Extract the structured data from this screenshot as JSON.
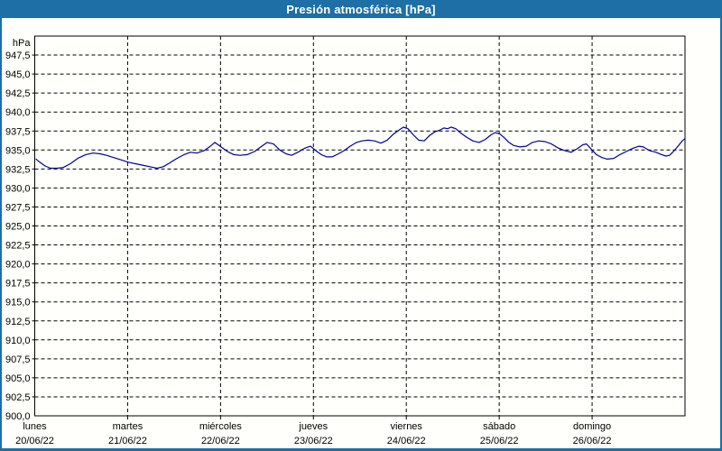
{
  "window": {
    "title": "Presión atmosférica [hPa]"
  },
  "colors": {
    "title_bar": "#1d6fa5",
    "frame_border": "#1d6fa5",
    "background": "#fffffb",
    "grid": "#000000",
    "axis": "#000000",
    "text": "#000000",
    "title_text": "#ffffff",
    "line": "#0000a0"
  },
  "chart_data": {
    "type": "line",
    "title": "Presión atmosférica [hPa]",
    "ylabel": "hPa",
    "xlabel": "",
    "ylim": [
      900,
      950
    ],
    "ytick_step": 2.5,
    "ytick_labels": [
      "947,5",
      "945,0",
      "942,5",
      "940,0",
      "937,5",
      "935,0",
      "932,5",
      "930,0",
      "927,5",
      "925,0",
      "922,5",
      "920,0",
      "917,5",
      "915,0",
      "912,5",
      "910,0",
      "907,5",
      "905,0",
      "902,5",
      "900,0"
    ],
    "ytick_top_value": 947.5,
    "grid": {
      "horizontal": "dashed",
      "vertical": "dashed-at-day-boundaries",
      "legend": "none"
    },
    "x_axis": {
      "unit": "days",
      "span_days": 7,
      "days": [
        {
          "weekday": "lunes",
          "date": "20/06/22"
        },
        {
          "weekday": "martes",
          "date": "21/06/22"
        },
        {
          "weekday": "miércoles",
          "date": "22/06/22"
        },
        {
          "weekday": "jueves",
          "date": "23/06/22"
        },
        {
          "weekday": "viernes",
          "date": "24/06/22"
        },
        {
          "weekday": "sábado",
          "date": "25/06/22"
        },
        {
          "weekday": "domingo",
          "date": "26/06/22"
        }
      ]
    },
    "series": [
      {
        "name": "Presión atmosférica",
        "color": "#0000a0",
        "x_unit": "days_from_20_06_22",
        "points": [
          [
            0.015,
            933.8
          ],
          [
            0.053,
            933.4
          ],
          [
            0.112,
            932.9
          ],
          [
            0.17,
            932.6
          ],
          [
            0.238,
            932.6
          ],
          [
            0.306,
            932.7
          ],
          [
            0.384,
            933.2
          ],
          [
            0.462,
            933.9
          ],
          [
            0.549,
            934.4
          ],
          [
            0.627,
            934.6
          ],
          [
            0.704,
            934.5
          ],
          [
            0.772,
            934.3
          ],
          [
            0.85,
            934.0
          ],
          [
            0.928,
            933.7
          ],
          [
            1.006,
            933.4
          ],
          [
            1.083,
            933.2
          ],
          [
            1.161,
            933.0
          ],
          [
            1.239,
            932.8
          ],
          [
            1.316,
            932.6
          ],
          [
            1.384,
            932.8
          ],
          [
            1.452,
            933.3
          ],
          [
            1.53,
            933.9
          ],
          [
            1.608,
            934.4
          ],
          [
            1.676,
            934.7
          ],
          [
            1.744,
            934.6
          ],
          [
            1.822,
            934.9
          ],
          [
            1.88,
            935.4
          ],
          [
            1.938,
            936.0
          ],
          [
            2.006,
            935.4
          ],
          [
            2.074,
            934.8
          ],
          [
            2.142,
            934.4
          ],
          [
            2.21,
            934.3
          ],
          [
            2.288,
            934.4
          ],
          [
            2.366,
            934.8
          ],
          [
            2.443,
            935.5
          ],
          [
            2.502,
            936.0
          ],
          [
            2.57,
            935.8
          ],
          [
            2.638,
            935.0
          ],
          [
            2.706,
            934.5
          ],
          [
            2.764,
            934.3
          ],
          [
            2.832,
            934.7
          ],
          [
            2.9,
            935.2
          ],
          [
            2.968,
            935.5
          ],
          [
            3.026,
            934.9
          ],
          [
            3.085,
            934.4
          ],
          [
            3.143,
            934.1
          ],
          [
            3.201,
            934.1
          ],
          [
            3.269,
            934.5
          ],
          [
            3.328,
            934.9
          ],
          [
            3.396,
            935.5
          ],
          [
            3.464,
            936.0
          ],
          [
            3.522,
            936.2
          ],
          [
            3.59,
            936.3
          ],
          [
            3.658,
            936.2
          ],
          [
            3.726,
            935.9
          ],
          [
            3.794,
            936.3
          ],
          [
            3.862,
            937.1
          ],
          [
            3.93,
            937.7
          ],
          [
            3.969,
            938.0
          ],
          [
            4.017,
            937.8
          ],
          [
            4.076,
            937.0
          ],
          [
            4.134,
            936.3
          ],
          [
            4.192,
            936.2
          ],
          [
            4.25,
            936.9
          ],
          [
            4.308,
            937.4
          ],
          [
            4.357,
            937.6
          ],
          [
            4.405,
            937.9
          ],
          [
            4.444,
            937.8
          ],
          [
            4.483,
            938.0
          ],
          [
            4.532,
            937.8
          ],
          [
            4.59,
            937.2
          ],
          [
            4.648,
            936.7
          ],
          [
            4.716,
            936.2
          ],
          [
            4.784,
            936.0
          ],
          [
            4.852,
            936.4
          ],
          [
            4.911,
            937.0
          ],
          [
            4.959,
            937.3
          ],
          [
            5.008,
            937.1
          ],
          [
            5.056,
            936.6
          ],
          [
            5.105,
            936.0
          ],
          [
            5.154,
            935.6
          ],
          [
            5.222,
            935.4
          ],
          [
            5.29,
            935.5
          ],
          [
            5.358,
            936.0
          ],
          [
            5.426,
            936.2
          ],
          [
            5.494,
            936.1
          ],
          [
            5.562,
            935.8
          ],
          [
            5.63,
            935.3
          ],
          [
            5.707,
            934.9
          ],
          [
            5.775,
            934.7
          ],
          [
            5.843,
            935.2
          ],
          [
            5.902,
            935.7
          ],
          [
            5.94,
            935.8
          ],
          [
            5.999,
            935.0
          ],
          [
            6.047,
            934.4
          ],
          [
            6.106,
            934.0
          ],
          [
            6.164,
            933.8
          ],
          [
            6.232,
            933.9
          ],
          [
            6.3,
            934.4
          ],
          [
            6.368,
            934.8
          ],
          [
            6.436,
            935.2
          ],
          [
            6.504,
            935.5
          ],
          [
            6.552,
            935.4
          ],
          [
            6.62,
            934.9
          ],
          [
            6.688,
            934.7
          ],
          [
            6.747,
            934.4
          ],
          [
            6.795,
            934.2
          ],
          [
            6.834,
            934.3
          ],
          [
            6.883,
            934.9
          ],
          [
            6.931,
            935.6
          ],
          [
            6.97,
            936.2
          ],
          [
            7.0,
            936.5
          ]
        ]
      }
    ]
  }
}
